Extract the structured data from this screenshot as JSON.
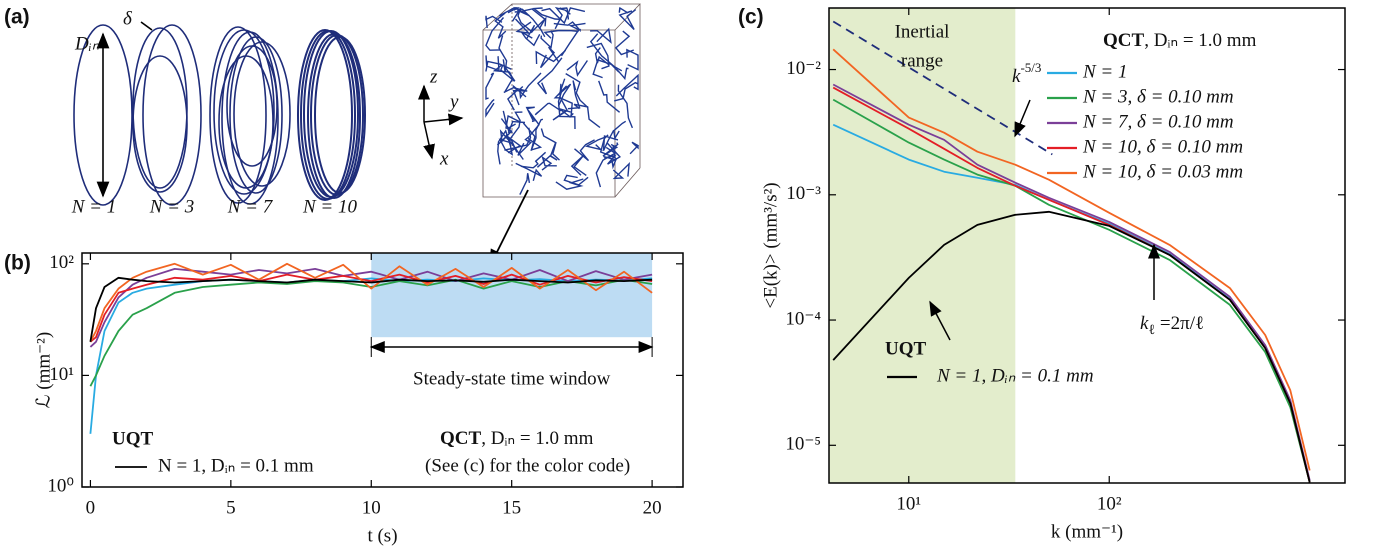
{
  "panel_labels": [
    "(a)",
    "(b)",
    "(c)"
  ],
  "schematic": {
    "d_in": "Dᵢₙ",
    "delta": "δ",
    "rings": [
      "N = 1",
      "N = 3",
      "N = 7",
      "N = 10"
    ],
    "axes": [
      "z",
      "y",
      "x"
    ]
  },
  "chart_data": [
    {
      "type": "line",
      "xlabel": "t (s)",
      "ylabel": "ℒ (mm⁻²)",
      "ylog": true,
      "xlim": [
        -0.3,
        21.1
      ],
      "xticks": [
        0,
        5,
        10,
        15,
        20
      ],
      "ylim": [
        1,
        125
      ],
      "yticks": [
        {
          "value": 1,
          "label": "10⁰"
        },
        {
          "value": 10,
          "label": "10¹"
        },
        {
          "value": 100,
          "label": "10²"
        }
      ],
      "shaded_x": [
        10,
        20
      ],
      "shaded_y_from": 22,
      "shade_color": "#bddcf3",
      "annotation": "Steady-state time window",
      "legend_title": "UQT",
      "group_title": "QCT",
      "group_note": ", Dᵢₙ = 1.0 mm",
      "group_hint": "(See (c) for the color code)",
      "x": [
        0,
        0.2,
        0.5,
        1,
        1.5,
        2,
        3,
        4,
        5,
        6,
        7,
        8,
        9,
        10,
        11,
        12,
        13,
        14,
        15,
        16,
        17,
        18,
        19,
        20
      ],
      "series": [
        {
          "color": "#29abe2",
          "values": [
            3,
            10,
            25,
            45,
            55,
            60,
            65,
            70,
            72,
            70,
            68,
            72,
            70,
            74,
            70,
            72,
            70,
            74,
            71,
            73,
            70,
            72,
            71,
            74
          ]
        },
        {
          "color": "#2aa14b",
          "values": [
            8,
            10,
            15,
            25,
            35,
            40,
            55,
            62,
            65,
            68,
            66,
            70,
            68,
            62,
            70,
            64,
            72,
            60,
            70,
            62,
            70,
            64,
            72,
            66
          ]
        },
        {
          "color": "#7b3f98",
          "values": [
            18,
            20,
            30,
            50,
            65,
            75,
            90,
            85,
            80,
            88,
            82,
            90,
            78,
            85,
            72,
            85,
            70,
            82,
            72,
            88,
            70,
            86,
            72,
            80
          ]
        },
        {
          "color": "#e41e26",
          "values": [
            20,
            22,
            35,
            55,
            60,
            65,
            75,
            72,
            78,
            70,
            80,
            72,
            78,
            70,
            80,
            68,
            78,
            66,
            80,
            65,
            78,
            68,
            76,
            70
          ]
        },
        {
          "color": "#f26522",
          "values": [
            20,
            25,
            40,
            60,
            75,
            85,
            100,
            80,
            98,
            72,
            100,
            75,
            98,
            60,
            95,
            65,
            90,
            62,
            92,
            60,
            88,
            58,
            85,
            55
          ]
        },
        {
          "name": "N = 1, Dᵢₙ = 0.1 mm",
          "color": "#000000",
          "values": [
            20,
            40,
            62,
            75,
            72,
            70,
            68,
            70,
            72,
            70,
            68,
            72,
            70,
            68,
            72,
            70,
            71,
            69,
            72,
            70,
            68,
            71,
            70,
            72
          ]
        }
      ]
    },
    {
      "type": "line",
      "xlabel": "k (mm⁻¹)",
      "ylabel": "<E(k)> (mm³/s²)",
      "xlog": true,
      "ylog": true,
      "xlim": [
        4,
        1500
      ],
      "xticks": [
        {
          "value": 10,
          "label": "10¹"
        },
        {
          "value": 100,
          "label": "10²"
        }
      ],
      "ylim": [
        5e-06,
        0.031
      ],
      "yticks": [
        {
          "value": 0.01,
          "label": "10⁻²"
        },
        {
          "value": 0.001,
          "label": "10⁻³"
        },
        {
          "value": 0.0001,
          "label": "10⁻⁴"
        },
        {
          "value": 1e-05,
          "label": "10⁻⁵"
        }
      ],
      "shaded_x": [
        4,
        34
      ],
      "shade_color": "#e3edcc",
      "shade_label": [
        "Inertial",
        "range"
      ],
      "reference_line": {
        "x": [
          4.2,
          52
        ],
        "y": [
          0.0242,
          0.0021
        ],
        "base": "k",
        "exponent": "-5/3"
      },
      "kl_label": {
        "base": "k",
        "sub": "ℓ",
        "rest": " =2π/ℓ"
      },
      "legend_title": "UQT",
      "group_title": "QCT",
      "group_note": ", Dᵢₙ = 1.0 mm",
      "x": [
        4.2,
        10,
        15,
        22,
        34,
        50,
        100,
        200,
        400,
        600,
        800,
        1000
      ],
      "series": [
        {
          "name": "N = 1",
          "color": "#29abe2",
          "values": [
            0.00363,
            0.00191,
            0.00153,
            0.00137,
            0.0012,
            0.000912,
            0.000586,
            0.000337,
            0.000147,
            6.08e-05,
            2.21e-05,
            5.15e-06
          ]
        },
        {
          "name": "N = 3, δ = 0.10 mm",
          "color": "#2aa14b",
          "values": [
            0.00575,
            0.00261,
            0.00191,
            0.00145,
            0.00118,
            0.000832,
            0.000525,
            0.000302,
            0.000132,
            5.55e-05,
            2.01e-05,
            5.06e-06
          ]
        },
        {
          "name": "N = 7, δ = 0.10 mm",
          "color": "#7b3f98",
          "values": [
            0.00759,
            0.00363,
            0.00275,
            0.00174,
            0.00125,
            0.000946,
            0.000608,
            0.00035,
            0.000153,
            6.31e-05,
            2.29e-05,
            5.25e-06
          ]
        },
        {
          "name": "N = 10, δ = 0.10 mm",
          "color": "#e41e26",
          "values": [
            0.00718,
            0.00337,
            0.00233,
            0.00164,
            0.00118,
            0.000912,
            0.000575,
            0.000331,
            0.000145,
            5.97e-05,
            2.17e-05,
            5.06e-06
          ]
        },
        {
          "name": "N = 10, δ = 0.03 mm",
          "color": "#f26522",
          "values": [
            0.0145,
            0.00413,
            0.00313,
            0.00221,
            0.00174,
            0.00132,
            0.000718,
            0.000398,
            0.00018,
            7.59e-05,
            2.75e-05,
            6.3e-06
          ]
        },
        {
          "name": "N = 1, Dᵢₙ = 0.1 mm",
          "color": "#000000",
          "values": [
            4.79e-05,
            0.000217,
            0.000398,
            0.000575,
            0.000692,
            0.000731,
            0.000565,
            0.000331,
            0.000145,
            5.97e-05,
            2.17e-05,
            5.06e-06
          ]
        }
      ]
    }
  ]
}
